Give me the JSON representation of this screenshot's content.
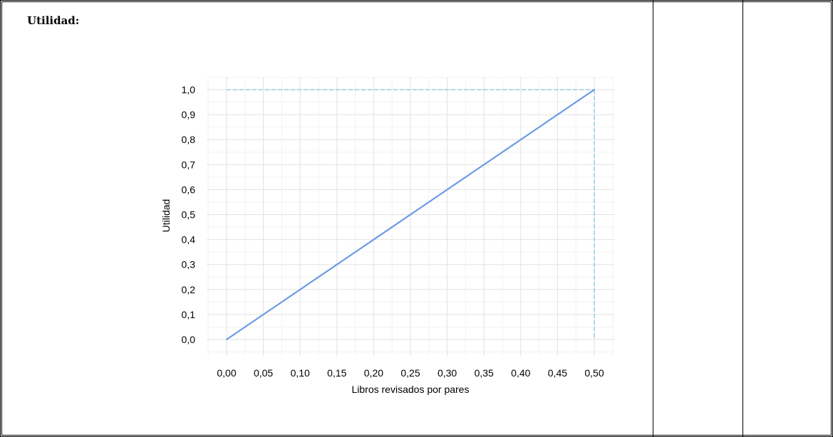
{
  "section": {
    "title": "Utilidad:"
  },
  "chart_data": {
    "type": "line",
    "title": "",
    "xlabel": "Libros revisados por pares",
    "ylabel": "Utilidad",
    "xlim": [
      0,
      0.5
    ],
    "ylim": [
      0,
      1
    ],
    "x_ticks": [
      "0,00",
      "0,05",
      "0,10",
      "0,15",
      "0,20",
      "0,25",
      "0,30",
      "0,35",
      "0,40",
      "0,45",
      "0,50"
    ],
    "y_ticks": [
      "0,0",
      "0,1",
      "0,2",
      "0,3",
      "0,4",
      "0,5",
      "0,6",
      "0,7",
      "0,8",
      "0,9",
      "1,0"
    ],
    "grid": true,
    "series": [
      {
        "x": [
          0.0,
          0.5
        ],
        "values": [
          0.0,
          1.0
        ],
        "color": "#6c9be4"
      }
    ],
    "reference_lines": {
      "vertical_x": 0.5,
      "horizontal_y": 1.0,
      "style": "dashed",
      "color": "#7fc3d9"
    }
  }
}
